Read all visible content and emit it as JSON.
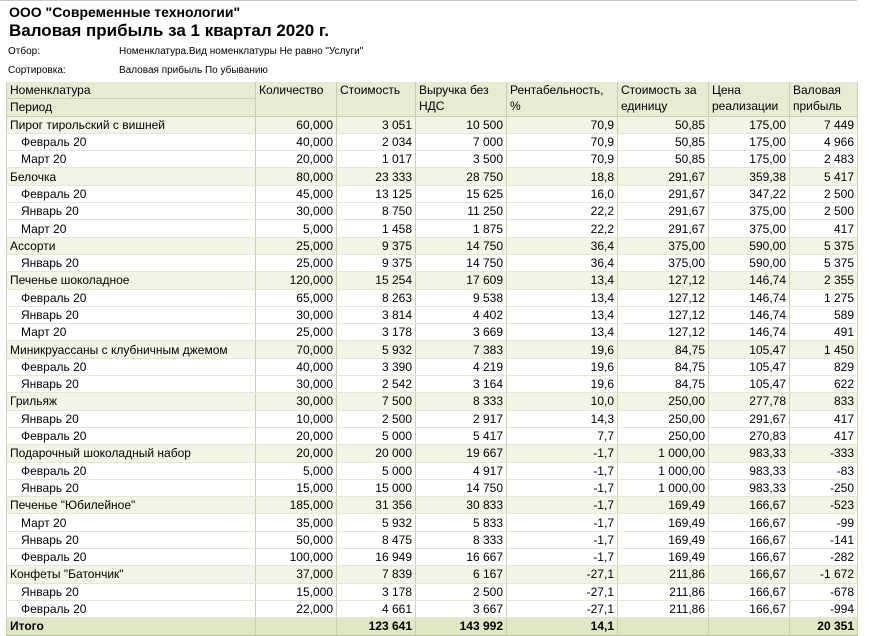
{
  "header": {
    "company": "ООО \"Современные технологии\"",
    "title": "Валовая прибыль за 1 квартал 2020 г.",
    "filter_label": "Отбор:",
    "filter_value": "Номенклатура.Вид номенклатуры Не равно \"Услуги\"",
    "sort_label": "Сортировка:",
    "sort_value": "Валовая прибыль По убыванию"
  },
  "table": {
    "first_column": [
      "Номенклатура",
      "Период"
    ],
    "columns": [
      [
        "Количество"
      ],
      [
        "Стоимость"
      ],
      [
        "Выручка без",
        "НДС"
      ],
      [
        "Рентабельность,",
        "%"
      ],
      [
        "Стоимость за",
        "единицу"
      ],
      [
        "Цена",
        "реализации"
      ],
      [
        "Валовая",
        "прибыль"
      ]
    ],
    "groups": [
      {
        "cells": [
          "Пирог тирольский с вишней",
          "60,000",
          "3 051",
          "10 500",
          "70,9",
          "50,85",
          "175,00",
          "7 449"
        ],
        "rows": [
          [
            "Февраль 20",
            "40,000",
            "2 034",
            "7 000",
            "70,9",
            "50,85",
            "175,00",
            "4 966"
          ],
          [
            "Март 20",
            "20,000",
            "1 017",
            "3 500",
            "70,9",
            "50,85",
            "175,00",
            "2 483"
          ]
        ]
      },
      {
        "cells": [
          "Белочка",
          "80,000",
          "23 333",
          "28 750",
          "18,8",
          "291,67",
          "359,38",
          "5 417"
        ],
        "rows": [
          [
            "Февраль 20",
            "45,000",
            "13 125",
            "15 625",
            "16,0",
            "291,67",
            "347,22",
            "2 500"
          ],
          [
            "Январь 20",
            "30,000",
            "8 750",
            "11 250",
            "22,2",
            "291,67",
            "375,00",
            "2 500"
          ],
          [
            "Март 20",
            "5,000",
            "1 458",
            "1 875",
            "22,2",
            "291,67",
            "375,00",
            "417"
          ]
        ]
      },
      {
        "cells": [
          "Ассорти",
          "25,000",
          "9 375",
          "14 750",
          "36,4",
          "375,00",
          "590,00",
          "5 375"
        ],
        "rows": [
          [
            "Январь 20",
            "25,000",
            "9 375",
            "14 750",
            "36,4",
            "375,00",
            "590,00",
            "5 375"
          ]
        ]
      },
      {
        "cells": [
          "Печенье шоколадное",
          "120,000",
          "15 254",
          "17 609",
          "13,4",
          "127,12",
          "146,74",
          "2 355"
        ],
        "rows": [
          [
            "Февраль 20",
            "65,000",
            "8 263",
            "9 538",
            "13,4",
            "127,12",
            "146,74",
            "1 275"
          ],
          [
            "Январь 20",
            "30,000",
            "3 814",
            "4 402",
            "13,4",
            "127,12",
            "146,74",
            "589"
          ],
          [
            "Март 20",
            "25,000",
            "3 178",
            "3 669",
            "13,4",
            "127,12",
            "146,74",
            "491"
          ]
        ]
      },
      {
        "cells": [
          "Миникруассаны с клубничным джемом",
          "70,000",
          "5 932",
          "7 383",
          "19,6",
          "84,75",
          "105,47",
          "1 450"
        ],
        "rows": [
          [
            "Февраль 20",
            "40,000",
            "3 390",
            "4 219",
            "19,6",
            "84,75",
            "105,47",
            "829"
          ],
          [
            "Январь 20",
            "30,000",
            "2 542",
            "3 164",
            "19,6",
            "84,75",
            "105,47",
            "622"
          ]
        ]
      },
      {
        "cells": [
          "Грильяж",
          "30,000",
          "7 500",
          "8 333",
          "10,0",
          "250,00",
          "277,78",
          "833"
        ],
        "rows": [
          [
            "Январь 20",
            "10,000",
            "2 500",
            "2 917",
            "14,3",
            "250,00",
            "291,67",
            "417"
          ],
          [
            "Февраль 20",
            "20,000",
            "5 000",
            "5 417",
            "7,7",
            "250,00",
            "270,83",
            "417"
          ]
        ]
      },
      {
        "cells": [
          "Подарочный шоколадный набор",
          "20,000",
          "20 000",
          "19 667",
          "-1,7",
          "1 000,00",
          "983,33",
          "-333"
        ],
        "rows": [
          [
            "Февраль 20",
            "5,000",
            "5 000",
            "4 917",
            "-1,7",
            "1 000,00",
            "983,33",
            "-83"
          ],
          [
            "Январь 20",
            "15,000",
            "15 000",
            "14 750",
            "-1,7",
            "1 000,00",
            "983,33",
            "-250"
          ]
        ]
      },
      {
        "cells": [
          "Печенье \"Юбилейное\"",
          "185,000",
          "31 356",
          "30 833",
          "-1,7",
          "169,49",
          "166,67",
          "-523"
        ],
        "rows": [
          [
            "Март 20",
            "35,000",
            "5 932",
            "5 833",
            "-1,7",
            "169,49",
            "166,67",
            "-99"
          ],
          [
            "Январь 20",
            "50,000",
            "8 475",
            "8 333",
            "-1,7",
            "169,49",
            "166,67",
            "-141"
          ],
          [
            "Февраль 20",
            "100,000",
            "16 949",
            "16 667",
            "-1,7",
            "169,49",
            "166,67",
            "-282"
          ]
        ]
      },
      {
        "cells": [
          "Конфеты \"Батончик\"",
          "37,000",
          "7 839",
          "6 167",
          "-27,1",
          "211,86",
          "166,67",
          "-1 672"
        ],
        "rows": [
          [
            "Январь 20",
            "15,000",
            "3 178",
            "2 500",
            "-27,1",
            "211,86",
            "166,67",
            "-678"
          ],
          [
            "Февраль 20",
            "22,000",
            "4 661",
            "3 667",
            "-27,1",
            "211,86",
            "166,67",
            "-994"
          ]
        ]
      }
    ],
    "total": [
      "Итого",
      null,
      "123 641",
      "143 992",
      "14,1",
      null,
      null,
      "20 351"
    ]
  }
}
